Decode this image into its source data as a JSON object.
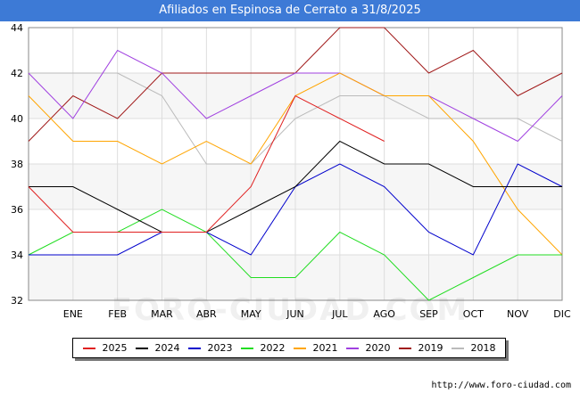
{
  "title": "Afiliados en Espinosa de Cerrato a 31/8/2025",
  "source": "http://www.foro-ciudad.com",
  "watermark": "FORO-CIUDAD.COM",
  "chart_data": {
    "type": "line",
    "title": "Afiliados en Espinosa de Cerrato a 31/8/2025",
    "categories": [
      "",
      "ENE",
      "FEB",
      "MAR",
      "ABR",
      "MAY",
      "JUN",
      "JUL",
      "AGO",
      "SEP",
      "OCT",
      "NOV",
      "DIC"
    ],
    "ylim": [
      32,
      44
    ],
    "yticks": [
      32,
      34,
      36,
      38,
      40,
      42,
      44
    ],
    "grid": true,
    "legend_position": "bottom",
    "series": [
      {
        "name": "2025",
        "color": "#e02020",
        "values": [
          37,
          35,
          35,
          35,
          35,
          37,
          41,
          40,
          39,
          null,
          null,
          null,
          null
        ]
      },
      {
        "name": "2024",
        "color": "#000000",
        "values": [
          37,
          37,
          36,
          35,
          35,
          36,
          37,
          39,
          38,
          38,
          37,
          37,
          37
        ]
      },
      {
        "name": "2023",
        "color": "#0000cc",
        "values": [
          34,
          34,
          34,
          35,
          35,
          34,
          37,
          38,
          37,
          35,
          34,
          38,
          37
        ]
      },
      {
        "name": "2022",
        "color": "#22dd22",
        "values": [
          34,
          35,
          35,
          36,
          35,
          33,
          33,
          35,
          34,
          32,
          33,
          34,
          34
        ]
      },
      {
        "name": "2021",
        "color": "#ffa500",
        "values": [
          41,
          39,
          39,
          38,
          39,
          38,
          41,
          42,
          41,
          41,
          39,
          36,
          34
        ]
      },
      {
        "name": "2020",
        "color": "#a040e0",
        "values": [
          42,
          40,
          43,
          42,
          40,
          41,
          42,
          42,
          41,
          41,
          40,
          39,
          41
        ]
      },
      {
        "name": "2019",
        "color": "#a01818",
        "values": [
          39,
          41,
          40,
          42,
          42,
          42,
          42,
          44,
          44,
          42,
          43,
          41,
          42
        ]
      },
      {
        "name": "2018",
        "color": "#bbbbbb",
        "values": [
          42,
          42,
          42,
          41,
          38,
          38,
          40,
          41,
          41,
          40,
          40,
          40,
          39
        ]
      }
    ]
  }
}
